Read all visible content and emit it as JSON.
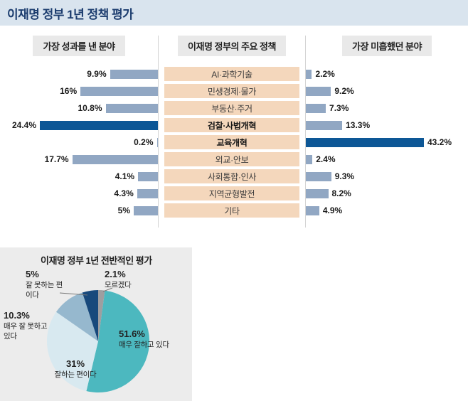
{
  "header": {
    "title": "이재명 정부 1년 정책 평가"
  },
  "colors": {
    "header_strip": "#d9e4ee",
    "bar_normal": "#91a7c3",
    "bar_highlight": "#0d5796",
    "category_box": "#f4d7bc",
    "card_bg": "#ececec"
  },
  "chart_data": [
    {
      "type": "bar",
      "layout": "diverging-triple-column",
      "left_title": "가장 성과를 낸 분야",
      "center_title": "이재명 정부의 주요 정책",
      "right_title": "가장 미흡했던 분야",
      "categories": [
        "AI·과학기술",
        "민생경제·물가",
        "부동산·주거",
        "검찰·사법개혁",
        "교육개혁",
        "외교·안보",
        "사회통합·인사",
        "지역균형발전",
        "기타"
      ],
      "emphasized_categories": [
        "검찰·사법개혁",
        "교육개혁"
      ],
      "series": [
        {
          "name": "가장 성과를 낸 분야",
          "side": "left",
          "values": [
            9.9,
            16,
            10.8,
            24.4,
            0.2,
            17.7,
            4.1,
            4.3,
            5
          ],
          "labels": [
            "9.9%",
            "16%",
            "10.8%",
            "24.4%",
            "0.2%",
            "17.7%",
            "4.1%",
            "4.3%",
            "5%"
          ],
          "highlight_index": 3
        },
        {
          "name": "가장 미흡했던 분야",
          "side": "right",
          "values": [
            2.2,
            9.2,
            7.3,
            13.3,
            43.2,
            2.4,
            9.3,
            8.2,
            4.9
          ],
          "labels": [
            "2.2%",
            "9.2%",
            "7.3%",
            "13.3%",
            "43.2%",
            "2.4%",
            "9.3%",
            "8.2%",
            "4.9%"
          ],
          "highlight_index": 4
        }
      ]
    },
    {
      "type": "pie",
      "title": "이재명 정부 1년 전반적인 평가",
      "direction": "clockwise",
      "start_angle_deg": 0,
      "slices": [
        {
          "label": "모르겠다",
          "value": 2.1,
          "display": "2.1%",
          "color": "#9e9ea0"
        },
        {
          "label": "매우 잘하고 있다",
          "value": 51.6,
          "display": "51.6%",
          "color": "#4cb8bf"
        },
        {
          "label": "잘하는 편이다",
          "value": 31,
          "display": "31%",
          "color": "#d8e9f0"
        },
        {
          "label": "매우 잘 못하고 있다",
          "value": 10.3,
          "display": "10.3%",
          "color": "#96b8ce"
        },
        {
          "label": "잘 못하는 편이다",
          "value": 5,
          "display": "5%",
          "color": "#17497c"
        }
      ]
    }
  ]
}
